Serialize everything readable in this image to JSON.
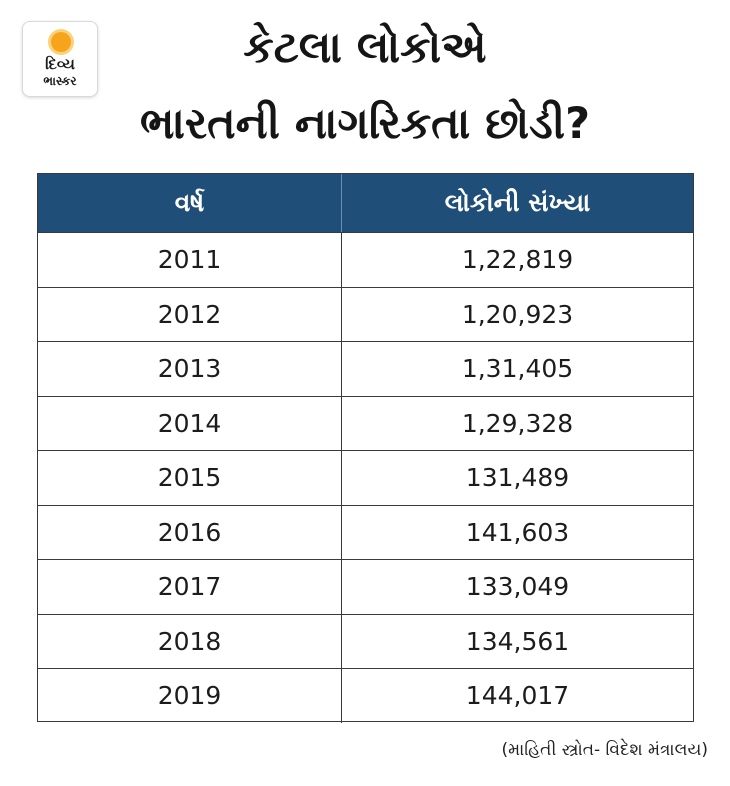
{
  "logo": {
    "line1": "દિવ્ય",
    "line2": "ભાસ્કર"
  },
  "title": {
    "line1": "કેટલા લોકોએ",
    "line2": "ભારતની નાગરિકતા છોડી?"
  },
  "table": {
    "headers": [
      "વર્ષ",
      "લોકોની સંખ્યા"
    ],
    "rows": [
      [
        "2011",
        "1,22,819"
      ],
      [
        "2012",
        "1,20,923"
      ],
      [
        "2013",
        "1,31,405"
      ],
      [
        "2014",
        "1,29,328"
      ],
      [
        "2015",
        "131,489"
      ],
      [
        "2016",
        "141,603"
      ],
      [
        "2017",
        "133,049"
      ],
      [
        "2018",
        "134,561"
      ],
      [
        "2019",
        "144,017"
      ]
    ]
  },
  "source": "(માહિતી સ્ત્રોત- વિદેશ મંત્રાલય)",
  "colors": {
    "header_bg": "#1f4e79",
    "logo_sun": "#f7a41d"
  }
}
